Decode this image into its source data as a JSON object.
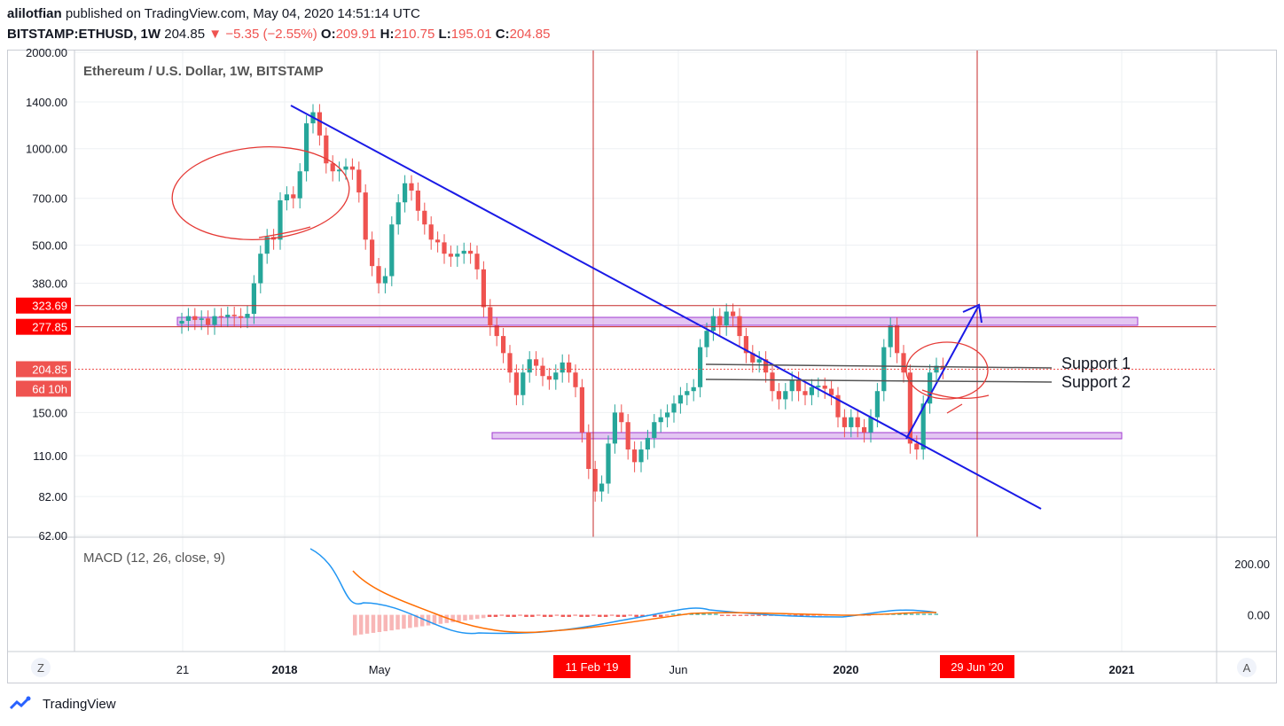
{
  "header": {
    "author": "alilotfian",
    "published": "published on TradingView.com, May 04, 2020 14:51:14 UTC",
    "symbol": "BITSTAMP:ETHUSD, 1W",
    "last": "204.85",
    "change": "−5.35 (−2.55%)",
    "o_label": "O:",
    "o_val": "209.91",
    "h_label": "H:",
    "h_val": "210.75",
    "l_label": "L:",
    "l_val": "195.01",
    "c_label": "C:",
    "c_val": "204.85"
  },
  "chart_data": {
    "type": "candlestick",
    "title": "Ethereum / U.S. Dollar, 1W, BITSTAMP",
    "y_scale": "log",
    "ylim": [
      62,
      2000
    ],
    "y_ticks": [
      "2000.00",
      "1400.00",
      "1000.00",
      "700.00",
      "500.00",
      "380.00",
      "150.00",
      "110.00",
      "82.00",
      "62.00"
    ],
    "price_labels": [
      {
        "text": "323.69",
        "color": "#ff0000"
      },
      {
        "text": "277.85",
        "color": "#ff0000"
      },
      {
        "text": "204.85",
        "color": "#ef5350"
      },
      {
        "text": "6d 10h",
        "color": "#ef5350"
      }
    ],
    "x_ticks": [
      "21",
      "2018",
      "May",
      "Jun",
      "2020",
      "2021"
    ],
    "x_markers": [
      "11 Feb '19",
      "29 Jun '20"
    ],
    "annotations": [
      "Support 1",
      "Support 2"
    ],
    "candles_close": [
      290,
      300,
      292,
      295,
      282,
      300,
      298,
      303,
      300,
      296,
      305,
      380,
      470,
      530,
      520,
      690,
      720,
      700,
      850,
      1200,
      1300,
      1100,
      900,
      850,
      860,
      880,
      860,
      730,
      520,
      430,
      380,
      400,
      580,
      680,
      780,
      740,
      640,
      580,
      520,
      510,
      470,
      460,
      470,
      480,
      470,
      420,
      320,
      280,
      260,
      230,
      200,
      170,
      200,
      220,
      210,
      195,
      190,
      200,
      215,
      200,
      180,
      130,
      100,
      85,
      90,
      120,
      150,
      140,
      115,
      105,
      115,
      125,
      140,
      145,
      150,
      160,
      170,
      175,
      180,
      240,
      270,
      300,
      280,
      310,
      300,
      260,
      230,
      215,
      220,
      200,
      175,
      165,
      175,
      190,
      175,
      170,
      180,
      182,
      178,
      170,
      145,
      135,
      145,
      135,
      130,
      145,
      175,
      240,
      280,
      230,
      200,
      120,
      115,
      160,
      200,
      210,
      205
    ],
    "macd": {
      "title": "MACD (12, 26, close, 9)",
      "y_ticks": [
        "200.00",
        "0.00"
      ],
      "ylim": [
        -140,
        300
      ]
    }
  },
  "footer": {
    "brand": "TradingView",
    "left_btn": "Z",
    "right_btn": "A"
  }
}
